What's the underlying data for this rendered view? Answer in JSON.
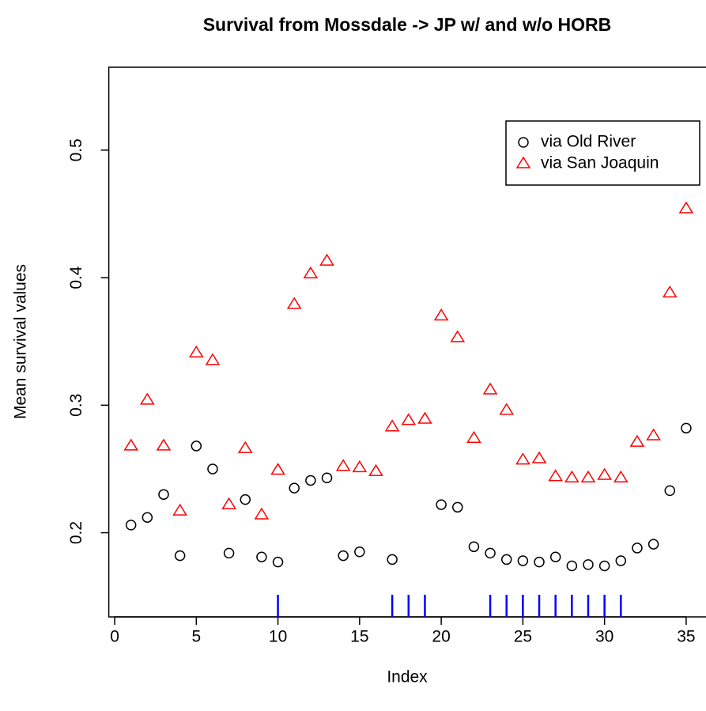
{
  "chart_data": {
    "type": "scatter",
    "title": "Survival from Mossdale -> JP w/ and w/o HORB",
    "x_label": "Index",
    "y_label": "Mean survival values",
    "x": [
      1,
      2,
      3,
      4,
      5,
      6,
      7,
      8,
      9,
      10,
      11,
      12,
      13,
      14,
      15,
      16,
      17,
      18,
      19,
      20,
      21,
      22,
      23,
      24,
      25,
      26,
      27,
      28,
      29,
      30,
      31,
      32,
      33,
      34,
      35
    ],
    "series": [
      {
        "name": "via Old River",
        "color": "#000000",
        "marker": "circle",
        "values": [
          0.206,
          0.212,
          0.23,
          0.182,
          0.268,
          0.25,
          0.184,
          0.226,
          0.181,
          0.177,
          0.235,
          0.241,
          0.243,
          0.182,
          0.185,
          null,
          0.179,
          null,
          null,
          0.222,
          0.22,
          0.189,
          0.184,
          0.179,
          0.178,
          0.177,
          0.181,
          0.174,
          0.175,
          0.174,
          0.178,
          0.188,
          0.191,
          0.233,
          0.282
        ]
      },
      {
        "name": "via San Joaquin",
        "color": "#ff0000",
        "marker": "triangle",
        "values": [
          0.268,
          0.304,
          0.268,
          0.217,
          0.341,
          0.335,
          0.222,
          0.266,
          0.214,
          0.249,
          0.379,
          0.403,
          0.413,
          0.252,
          0.251,
          0.248,
          0.283,
          0.288,
          0.289,
          0.37,
          0.353,
          0.274,
          0.312,
          0.296,
          0.257,
          0.258,
          0.244,
          0.243,
          0.243,
          0.245,
          0.243,
          0.271,
          0.276,
          0.388,
          0.454
        ]
      }
    ],
    "rug": {
      "color": "#0000ff",
      "x": [
        10,
        17,
        18,
        19,
        23,
        24,
        25,
        26,
        27,
        28,
        29,
        30,
        31
      ]
    },
    "xlim": [
      -0.36,
      36.36
    ],
    "xticks": [
      0,
      5,
      10,
      15,
      20,
      25,
      30,
      35
    ],
    "ylim": [
      0.134,
      0.565
    ],
    "yticks": [
      0.2,
      0.3,
      0.4,
      0.5
    ],
    "legend": "topright"
  }
}
